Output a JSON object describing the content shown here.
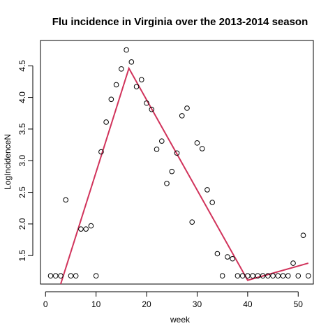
{
  "chart_data": {
    "type": "scatter",
    "title": "Flu incidence in Virginia over the 2013-2014 season",
    "xlabel": "week",
    "ylabel": "LogIncidenceN",
    "xlim": [
      -1,
      53
    ],
    "ylim": [
      1.05,
      4.9
    ],
    "x_ticks": [
      0,
      10,
      20,
      30,
      40,
      50
    ],
    "y_ticks": [
      1.5,
      2.0,
      2.5,
      3.0,
      3.5,
      4.0,
      4.5
    ],
    "y_tick_labels": [
      "1.5",
      "2.0",
      "2.5",
      "3.0",
      "3.5",
      "4.0",
      "4.5"
    ],
    "line_color": "#d1335b",
    "points": {
      "x": [
        1,
        2,
        3,
        4,
        5,
        6,
        7,
        8,
        9,
        10,
        11,
        12,
        13,
        14,
        15,
        16,
        17,
        18,
        19,
        20,
        21,
        22,
        23,
        24,
        25,
        26,
        27,
        28,
        29,
        30,
        31,
        32,
        33,
        34,
        35,
        36,
        37,
        38,
        39,
        40,
        41,
        42,
        43,
        44,
        45,
        46,
        47,
        48,
        49,
        50,
        51,
        52
      ],
      "y": [
        1.18,
        1.18,
        1.18,
        2.38,
        1.18,
        1.18,
        1.92,
        1.92,
        1.97,
        1.18,
        3.14,
        3.61,
        3.97,
        4.2,
        4.45,
        4.75,
        4.56,
        4.17,
        4.28,
        3.91,
        3.81,
        3.18,
        3.31,
        2.64,
        2.83,
        3.12,
        3.71,
        3.83,
        2.03,
        3.28,
        3.19,
        2.54,
        2.34,
        1.53,
        1.18,
        1.48,
        1.45,
        1.18,
        1.18,
        1.18,
        1.18,
        1.18,
        1.18,
        1.18,
        1.18,
        1.18,
        1.18,
        1.18,
        1.38,
        1.18,
        1.82,
        1.18
      ]
    },
    "fit_line": {
      "x": [
        3,
        16.5,
        40,
        52
      ],
      "y": [
        1.05,
        4.46,
        1.11,
        1.38
      ]
    }
  }
}
